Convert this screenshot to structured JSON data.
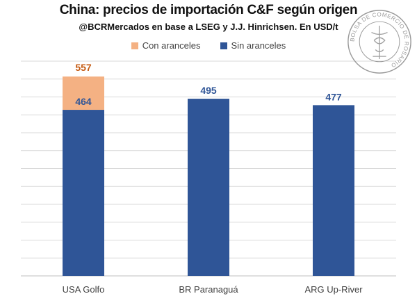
{
  "title": "China: precios de importación C&F según origen",
  "subtitle": "@BCRMercados en base a LSEG y J.J. Hinrichsen. En USD/t",
  "seal_text": "BOLSA DE COMERCIO DE ROSARIO",
  "chart_data": {
    "type": "bar",
    "stacked": true,
    "categories": [
      "USA Golfo",
      "BR Paranaguá",
      "ARG Up-River"
    ],
    "series": [
      {
        "name": "Sin aranceles",
        "color": "#2F5597",
        "values": [
          464,
          495,
          477
        ]
      },
      {
        "name": "Con aranceles",
        "color": "#F4B183",
        "values": [
          93,
          0,
          0
        ]
      }
    ],
    "labels": {
      "base": [
        "464",
        "495",
        "477"
      ],
      "total": [
        "557",
        "",
        ""
      ]
    },
    "colors": {
      "label_base": "#2F5597",
      "label_total": "#C55A11",
      "grid": "#D9D9D9"
    },
    "legend": [
      "Con aranceles",
      "Sin aranceles"
    ],
    "legend_position": "top",
    "ylim": [
      0,
      600
    ],
    "grid": true
  }
}
